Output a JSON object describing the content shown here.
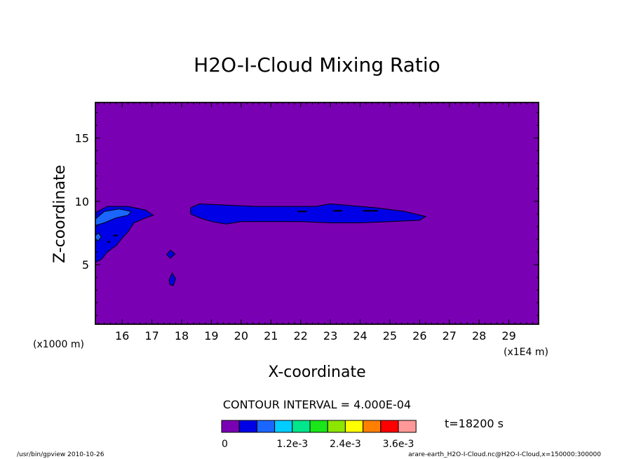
{
  "chart_data": {
    "type": "contour",
    "title": "H2O-I-Cloud Mixing Ratio",
    "xlabel": "X-coordinate",
    "ylabel": "Z-coordinate",
    "x_units_left": "(x1000 m)",
    "x_units_right": "(x1E4 m)",
    "xlim": [
      15.1,
      30.0
    ],
    "ylim": [
      0.3,
      17.8
    ],
    "x_ticks": [
      "16",
      "17",
      "18",
      "19",
      "20",
      "21",
      "22",
      "23",
      "24",
      "25",
      "26",
      "27",
      "28",
      "29"
    ],
    "y_ticks": [
      "5",
      "10",
      "15"
    ],
    "x_tick_values": [
      16,
      17,
      18,
      19,
      20,
      21,
      22,
      23,
      24,
      25,
      26,
      27,
      28,
      29
    ],
    "y_tick_values": [
      5,
      10,
      15
    ],
    "contour_interval_text": "CONTOUR INTERVAL = 4.000E-04",
    "time_text": "t=18200 s",
    "colorbar": {
      "colors": [
        "#7a00b4",
        "#0000e6",
        "#1a66ff",
        "#00ccff",
        "#00e68c",
        "#1ae61a",
        "#8ce600",
        "#ffff00",
        "#ff8000",
        "#ff0000",
        "#ff9999"
      ],
      "labels": [
        "0",
        "1.2e-3",
        "2.4e-3",
        "3.6e-3"
      ]
    },
    "background_color": "#7a00b4",
    "contour_regions": [
      {
        "level": "4.0e-4",
        "color": "#0000e6",
        "polygon": [
          [
            15.1,
            9.1
          ],
          [
            15.5,
            9.6
          ],
          [
            16.2,
            9.6
          ],
          [
            16.8,
            9.3
          ],
          [
            17.05,
            8.9
          ],
          [
            16.8,
            8.7
          ],
          [
            16.4,
            8.3
          ],
          [
            16.2,
            7.6
          ],
          [
            16.0,
            7.1
          ],
          [
            15.8,
            6.5
          ],
          [
            15.5,
            6.0
          ],
          [
            15.3,
            5.4
          ],
          [
            15.1,
            5.2
          ]
        ]
      },
      {
        "level": "8.0e-4",
        "color": "#1a66ff",
        "polygon": [
          [
            15.1,
            8.6
          ],
          [
            15.4,
            9.2
          ],
          [
            15.9,
            9.4
          ],
          [
            16.3,
            9.2
          ],
          [
            16.2,
            8.9
          ],
          [
            15.8,
            8.7
          ],
          [
            15.4,
            8.3
          ],
          [
            15.1,
            8.1
          ]
        ]
      },
      {
        "level": "8.0e-4",
        "color": "#1a66ff",
        "polygon": [
          [
            15.1,
            7.3
          ],
          [
            15.2,
            7.5
          ],
          [
            15.3,
            7.2
          ],
          [
            15.2,
            6.9
          ],
          [
            15.1,
            6.9
          ]
        ]
      },
      {
        "level": "4.0e-4",
        "color": "#0000e6",
        "polygon": [
          [
            18.3,
            9.5
          ],
          [
            18.6,
            9.8
          ],
          [
            19.5,
            9.7
          ],
          [
            20.5,
            9.6
          ],
          [
            21.5,
            9.6
          ],
          [
            22.5,
            9.6
          ],
          [
            23.0,
            9.8
          ],
          [
            23.5,
            9.7
          ],
          [
            24.5,
            9.5
          ],
          [
            25.5,
            9.2
          ],
          [
            26.2,
            8.8
          ],
          [
            26.0,
            8.5
          ],
          [
            25.0,
            8.4
          ],
          [
            24.0,
            8.3
          ],
          [
            23.0,
            8.3
          ],
          [
            22.0,
            8.4
          ],
          [
            21.0,
            8.4
          ],
          [
            20.0,
            8.4
          ],
          [
            19.5,
            8.2
          ],
          [
            19.0,
            8.4
          ],
          [
            18.6,
            8.7
          ],
          [
            18.3,
            9.0
          ]
        ]
      },
      {
        "level": "4.0e-4",
        "color": "#0000e6",
        "polygon": [
          [
            17.5,
            5.8
          ],
          [
            17.62,
            6.15
          ],
          [
            17.78,
            5.85
          ],
          [
            17.62,
            5.5
          ]
        ]
      },
      {
        "level": "4.0e-4",
        "color": "#0000e6",
        "polygon": [
          [
            17.58,
            3.8
          ],
          [
            17.68,
            4.35
          ],
          [
            17.8,
            3.9
          ],
          [
            17.72,
            3.35
          ],
          [
            17.6,
            3.45
          ]
        ]
      }
    ],
    "dark_dashes": [
      {
        "x": [
          21.9,
          22.2
        ],
        "z": 9.2
      },
      {
        "x": [
          23.1,
          23.4
        ],
        "z": 9.25
      },
      {
        "x": [
          24.1,
          24.6
        ],
        "z": 9.25
      },
      {
        "x": [
          15.7,
          15.85
        ],
        "z": 7.3
      },
      {
        "x": [
          15.5,
          15.6
        ],
        "z": 6.8
      }
    ]
  },
  "footer": {
    "left": "/usr/bin/gpview   2010-10-26",
    "right": "arare-earth_H2O-I-Cloud.nc@H2O-I-Cloud,x=150000:300000"
  }
}
